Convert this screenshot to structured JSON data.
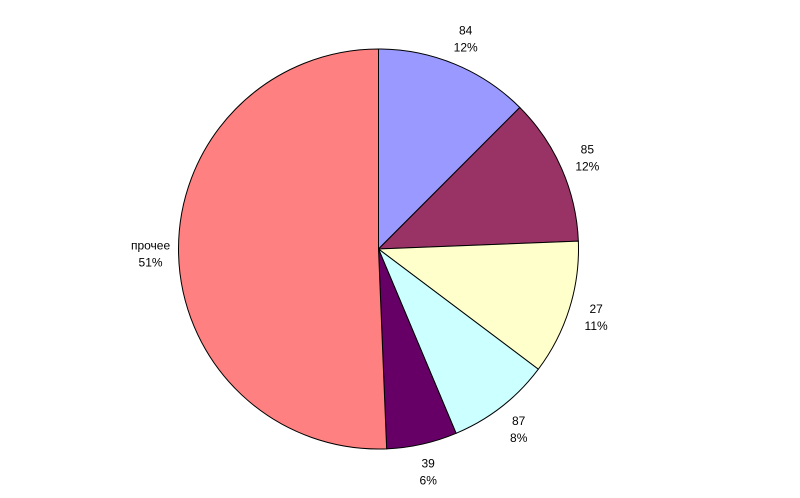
{
  "chart_data": {
    "type": "pie",
    "start_angle": "top",
    "direction": "clockwise",
    "legend": "none",
    "slices": [
      {
        "label": "84",
        "value": 12.5,
        "percent_label": "12%",
        "color": "#9999FF"
      },
      {
        "label": "85",
        "value": 11.9,
        "percent_label": "12%",
        "color": "#993366"
      },
      {
        "label": "27",
        "value": 10.9,
        "percent_label": "11%",
        "color": "#FFFFCC"
      },
      {
        "label": "87",
        "value": 8.4,
        "percent_label": "8%",
        "color": "#CCFFFF"
      },
      {
        "label": "39",
        "value": 5.7,
        "percent_label": "6%",
        "color": "#660066"
      },
      {
        "label": "прочее",
        "value": 50.7,
        "percent_label": "51%",
        "color": "#FF8080"
      }
    ]
  }
}
